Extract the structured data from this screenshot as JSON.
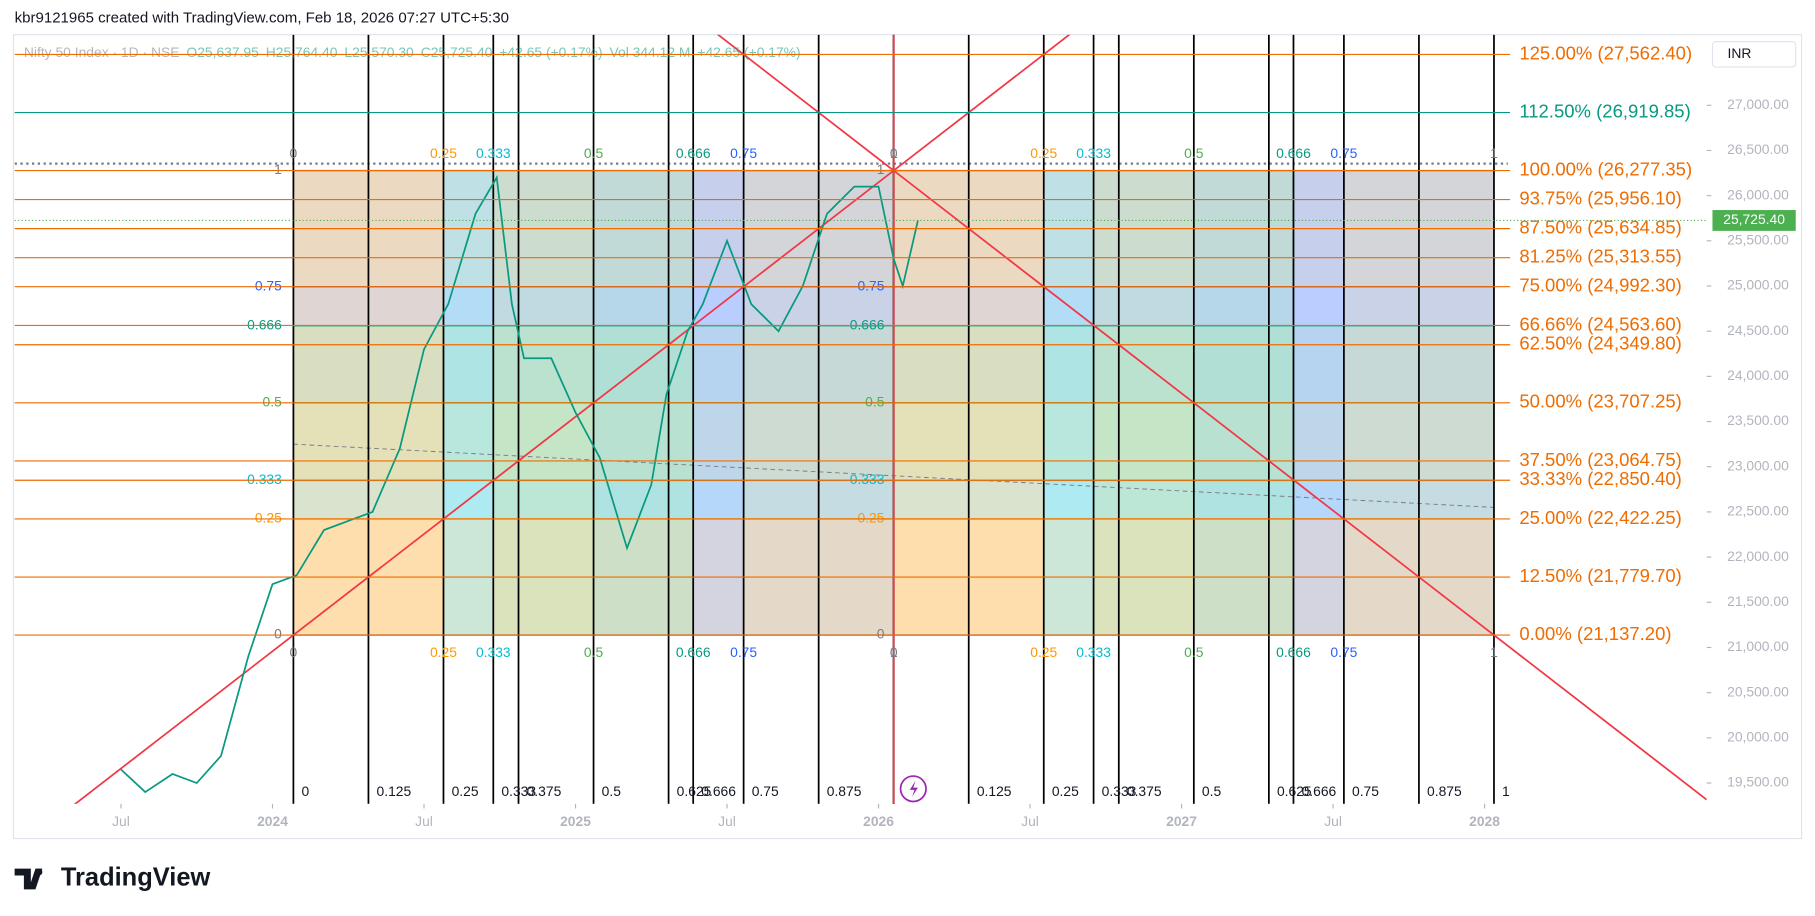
{
  "header": {
    "credit": "kbr9121965 created with TradingView.com, Feb 18, 2026 07:27 UTC+5:30",
    "brand": "TradingView"
  },
  "chart_data": {
    "type": "line",
    "currency": "INR",
    "legend": {
      "symbol": "Nifty 50 Index · 1D · NSE",
      "open": "O25,637.95",
      "high": "H25,764.40",
      "low": "L25,570.30",
      "close": "C25,725.40",
      "change": "+42.65 (+0.17%)",
      "volume": "Vol 344.12 M",
      "volume_change": "+42.65 (+0.17%)"
    },
    "x": [
      2023.5,
      2023.58,
      2023.67,
      2023.75,
      2023.83,
      2023.92,
      2024.0,
      2024.08,
      2024.17,
      2024.25,
      2024.33,
      2024.42,
      2024.5,
      2024.58,
      2024.67,
      2024.74,
      2024.79,
      2024.83,
      2024.92,
      2025.0,
      2025.08,
      2025.17,
      2025.25,
      2025.3,
      2025.37,
      2025.42,
      2025.5,
      2025.58,
      2025.67,
      2025.75,
      2025.83,
      2025.92,
      2026.0,
      2026.05,
      2026.08,
      2026.13
    ],
    "series": [
      {
        "name": "Nifty 50 Index",
        "color": "#089981",
        "values": [
          19650,
          19400,
          19600,
          19500,
          19800,
          20900,
          21700,
          21800,
          22300,
          22400,
          22500,
          23200,
          24300,
          24800,
          25800,
          26200,
          24800,
          24200,
          24200,
          23600,
          23100,
          22100,
          22800,
          23800,
          24500,
          24800,
          25500,
          24800,
          24500,
          25000,
          25800,
          26100,
          26100,
          25300,
          25000,
          25725.4
        ]
      }
    ],
    "last_price": {
      "value": 25725.4,
      "label": "25,725.40"
    },
    "last_price_color": "#4caf50",
    "xlim": [
      2023.149,
      2028.733
    ],
    "xticks": [
      {
        "value": 2023.5,
        "label": "Jul"
      },
      2024,
      {
        "value": 2024.5,
        "label": "Jul"
      },
      2025,
      {
        "value": 2025.5,
        "label": "Jul"
      },
      2026,
      {
        "value": 2026.5,
        "label": "Jul"
      },
      2027,
      {
        "value": 2027.5,
        "label": "Jul"
      },
      2028
    ],
    "ylim": [
      19270,
      27781
    ],
    "yticks": [
      {
        "value": 19500,
        "label": "19,500.00"
      },
      {
        "value": 20000,
        "label": "20,000.00"
      },
      {
        "value": 20500,
        "label": "20,500.00"
      },
      {
        "value": 21000,
        "label": "21,000.00"
      },
      {
        "value": 21500,
        "label": "21,500.00"
      },
      {
        "value": 22000,
        "label": "22,000.00"
      },
      {
        "value": 22500,
        "label": "22,500.00"
      },
      {
        "value": 23000,
        "label": "23,000.00"
      },
      {
        "value": 23500,
        "label": "23,500.00"
      },
      {
        "value": 24000,
        "label": "24,000.00"
      },
      {
        "value": 24500,
        "label": "24,500.00"
      },
      {
        "value": 25000,
        "label": "25,000.00"
      },
      {
        "value": 25500,
        "label": "25,500.00"
      },
      {
        "value": 26000,
        "label": "26,000.00"
      },
      {
        "value": 26500,
        "label": "26,500.00"
      },
      {
        "value": 27000,
        "label": "27,000.00"
      }
    ],
    "fib_levels": [
      {
        "value": 27562.4,
        "label": "125.00% (27,562.40)",
        "color": "#ef6c00"
      },
      {
        "value": 26919.85,
        "label": "112.50% (26,919.85)",
        "color": "#089981"
      },
      {
        "value": 26277.35,
        "label": "100.00% (26,277.35)",
        "color": "#ef6c00"
      },
      {
        "value": 25956.1,
        "label": "93.75% (25,956.10)",
        "color": "#ef6c00"
      },
      {
        "value": 25634.85,
        "label": "87.50% (25,634.85)",
        "color": "#ef6c00"
      },
      {
        "value": 25313.55,
        "label": "81.25% (25,313.55)",
        "color": "#ef6c00"
      },
      {
        "value": 24992.3,
        "label": "75.00% (24,992.30)",
        "color": "#ef6c00"
      },
      {
        "value": 24563.6,
        "label": "66.66% (24,563.60)",
        "color": "#ef6c00"
      },
      {
        "value": 24349.8,
        "label": "62.50% (24,349.80)",
        "color": "#ef6c00"
      },
      {
        "value": 23707.25,
        "label": "50.00% (23,707.25)",
        "color": "#ef6c00"
      },
      {
        "value": 23064.75,
        "label": "37.50% (23,064.75)",
        "color": "#ef6c00"
      },
      {
        "value": 22850.4,
        "label": "33.33% (22,850.40)",
        "color": "#ef6c00"
      },
      {
        "value": 22422.25,
        "label": "25.00% (22,422.25)",
        "color": "#ef6c00"
      },
      {
        "value": 21779.7,
        "label": "12.50% (21,779.70)",
        "color": "#ef6c00"
      },
      {
        "value": 21137.2,
        "label": "0.00% (21,137.20)",
        "color": "#ef6c00"
      }
    ],
    "box_low": 21137.2,
    "box_high": 26277.35,
    "time_zone_start": 2024.069,
    "time_zone_mid": 2026.05,
    "time_zone_end": 2028.031,
    "box_ratios": [
      0,
      0.25,
      0.333,
      0.5,
      0.666,
      0.75,
      1
    ],
    "box_colors": [
      "#787b86",
      "#ff9800",
      "#00bcd4",
      "#4caf50",
      "#089981",
      "#2962ff",
      "#787b86"
    ],
    "time_ratios": [
      0,
      0.125,
      0.25,
      0.333,
      0.375,
      0.5,
      0.625,
      0.666,
      0.75,
      0.875,
      1
    ],
    "gann_color": "#f23645"
  }
}
